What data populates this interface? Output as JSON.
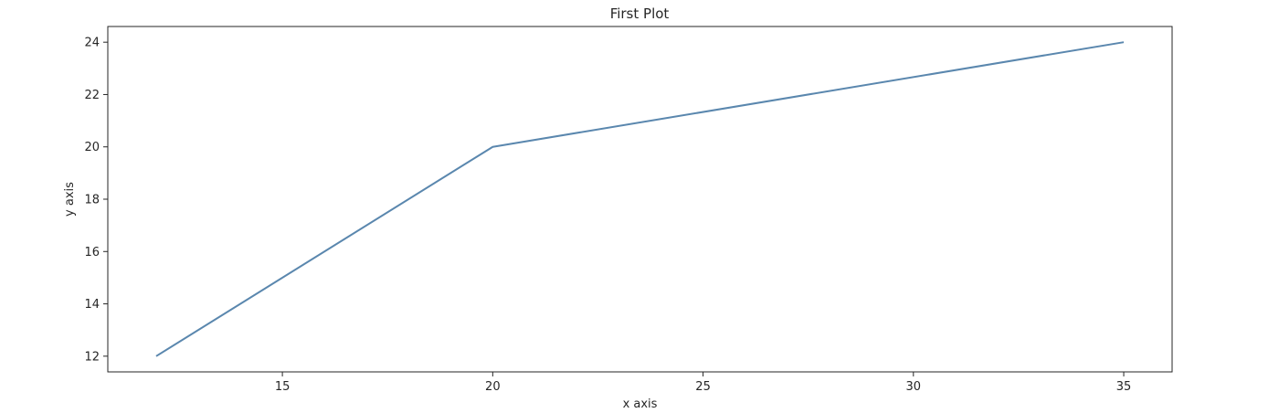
{
  "chart_data": {
    "type": "line",
    "title": "First Plot",
    "xlabel": "x axis",
    "ylabel": "y axis",
    "xlim": [
      10.85,
      36.15
    ],
    "ylim": [
      11.4,
      24.6
    ],
    "x_ticks": [
      15,
      20,
      25,
      30,
      35
    ],
    "y_ticks": [
      12,
      14,
      16,
      18,
      20,
      22,
      24
    ],
    "grid": false,
    "series": [
      {
        "x": [
          12,
          20,
          35
        ],
        "y": [
          12,
          20,
          24
        ],
        "color": "#5a87ae"
      }
    ],
    "axis_color": "#262626"
  }
}
